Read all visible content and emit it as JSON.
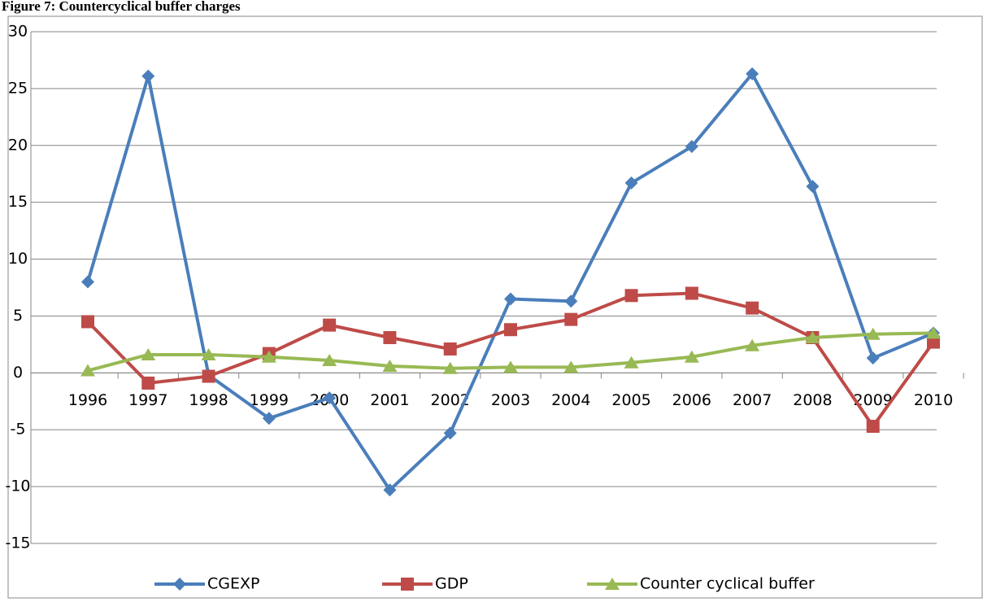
{
  "chart_data": {
    "type": "line",
    "title": "Figure 7: Countercyclical buffer charges",
    "categories": [
      "1996",
      "1997",
      "1998",
      "1999",
      "2000",
      "2001",
      "2002",
      "2003",
      "2004",
      "2005",
      "2006",
      "2007",
      "2008",
      "2009",
      "2010"
    ],
    "series": [
      {
        "name": "CGEXP",
        "color": "#4a7ebb",
        "marker": "diamond",
        "values": [
          8,
          26.1,
          -0.2,
          -4,
          -2.2,
          -10.3,
          -5.3,
          6.5,
          6.3,
          16.7,
          19.9,
          26.3,
          16.4,
          1.3,
          3.5
        ]
      },
      {
        "name": "GDP",
        "color": "#be4b48",
        "marker": "square",
        "values": [
          4.5,
          -0.9,
          -0.3,
          1.7,
          4.2,
          3.1,
          2.1,
          3.8,
          4.7,
          6.8,
          7.0,
          5.7,
          3.1,
          -4.7,
          2.7
        ]
      },
      {
        "name": "Counter cyclical buffer",
        "color": "#98b954",
        "marker": "triangle",
        "values": [
          0.2,
          1.6,
          1.6,
          1.4,
          1.1,
          0.6,
          0.4,
          0.5,
          0.5,
          0.9,
          1.4,
          2.4,
          3.1,
          3.4,
          3.5
        ]
      }
    ],
    "ylim": [
      -15,
      30
    ],
    "yticks": [
      -15,
      -10,
      -5,
      0,
      5,
      10,
      15,
      20,
      25,
      30
    ],
    "grid": true,
    "legend": "bottom"
  }
}
